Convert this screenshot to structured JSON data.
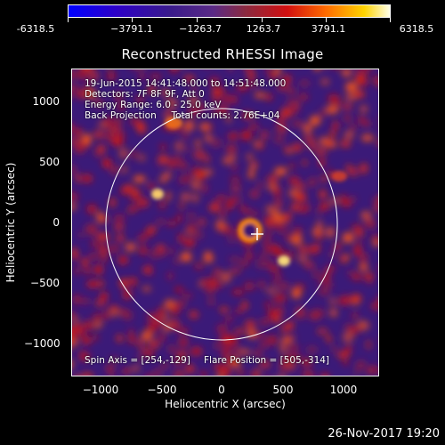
{
  "colorbar": {
    "ticks": [
      "-6318.5",
      "−3791.1",
      "−1263.7",
      "1263.7",
      "3791.1",
      "6318.5"
    ]
  },
  "title": "Reconstructed RHESSI Image",
  "info": {
    "line1": "19-Jun-2015 14:41:48.000 to 14:51:48.000",
    "line2": "Detectors: 7F 8F 9F, Att 0",
    "line3": "Energy Range: 6.0 - 25.0 keV",
    "line4": "Back Projection     Total counts: 2.76E+04",
    "spin_axis": "Spin Axis = [254,-129]",
    "flare_position": "Flare Position = [505,-314]"
  },
  "axes": {
    "xlabel": "Heliocentric X (arcsec)",
    "ylabel": "Heliocentric Y (arcsec)",
    "xticks": [
      "−1000",
      "−500",
      "0",
      "500",
      "1000"
    ],
    "yticks": [
      "1000",
      "500",
      "0",
      "−500",
      "−1000"
    ]
  },
  "timestamp": "26-Nov-2017 19:20",
  "colors": {
    "background": "#000000",
    "axes": "#ffffff",
    "limb_circle": "#ffffff",
    "colormap_low": "#0000ff",
    "colormap_high": "#ffffe8"
  }
}
